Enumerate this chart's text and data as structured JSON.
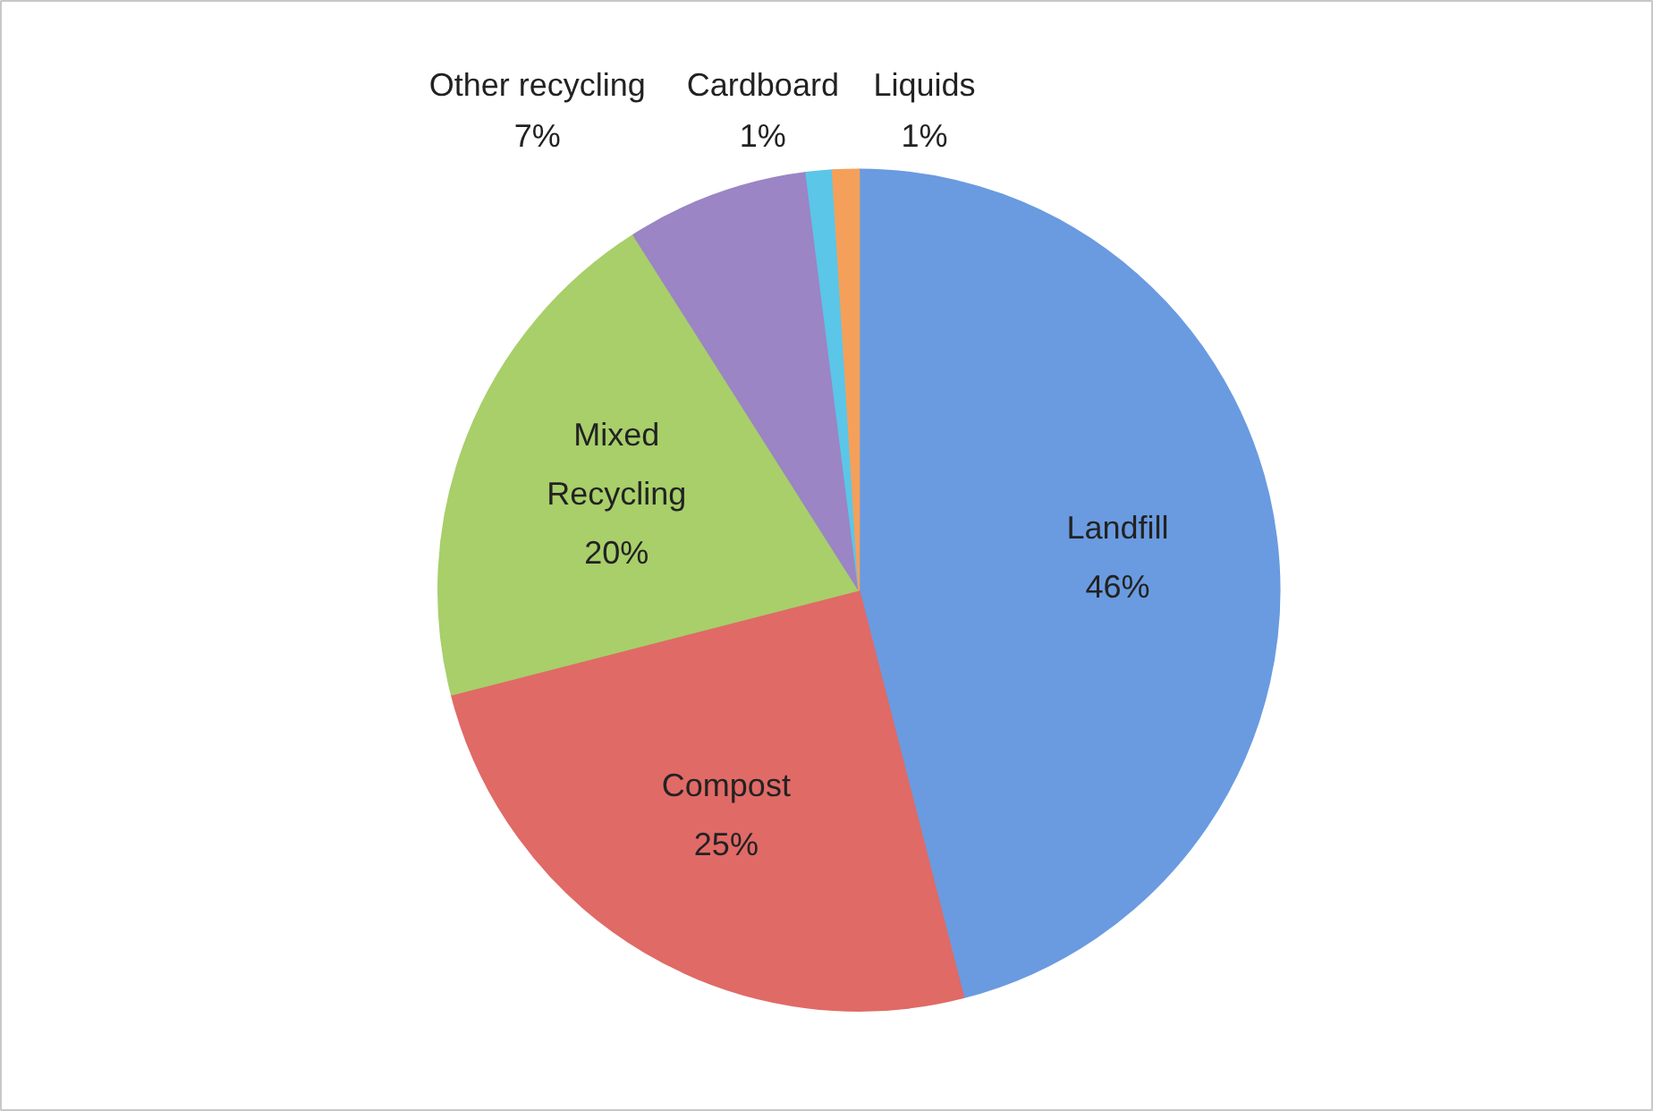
{
  "chart_data": {
    "type": "pie",
    "categories": [
      "Landfill",
      "Compost",
      "Mixed Recycling",
      "Other recycling",
      "Cardboard",
      "Liquids"
    ],
    "values": [
      46,
      25,
      20,
      7,
      1,
      1
    ],
    "colors": [
      "#6a9be0",
      "#e06a66",
      "#a8cf6a",
      "#9b85c4",
      "#5bc6e8",
      "#f5a05a"
    ],
    "value_labels": [
      "46%",
      "25%",
      "20%",
      "7%",
      "1%",
      "1%"
    ]
  }
}
